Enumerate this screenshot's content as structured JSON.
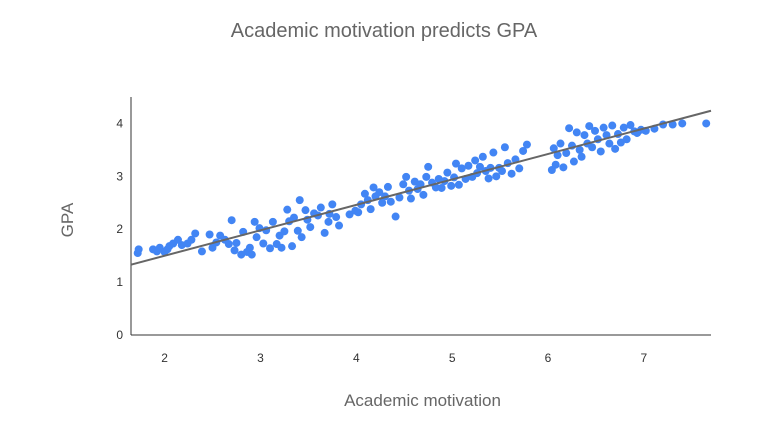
{
  "chart_data": {
    "type": "scatter",
    "title": "Academic motivation predicts GPA",
    "xlabel": "Academic motivation",
    "ylabel": "GPA",
    "xlim": [
      1.65,
      7.7
    ],
    "ylim": [
      0,
      4.5
    ],
    "x_ticks": [
      2,
      3,
      4,
      5,
      6,
      7
    ],
    "y_ticks": [
      0,
      1,
      2,
      3,
      4
    ],
    "grid": false,
    "legend": "none",
    "colors": {
      "points": "#4285f4",
      "trendline": "#666666",
      "axis": "#333333",
      "text": "#666666"
    },
    "trendline": {
      "x": [
        1.65,
        7.7
      ],
      "y": [
        1.33,
        4.24
      ]
    },
    "points": [
      [
        1.72,
        1.55
      ],
      [
        1.73,
        1.62
      ],
      [
        1.88,
        1.62
      ],
      [
        1.92,
        1.58
      ],
      [
        1.95,
        1.65
      ],
      [
        2.0,
        1.57
      ],
      [
        2.03,
        1.62
      ],
      [
        2.05,
        1.68
      ],
      [
        2.09,
        1.73
      ],
      [
        2.14,
        1.8
      ],
      [
        2.18,
        1.7
      ],
      [
        2.24,
        1.73
      ],
      [
        2.28,
        1.8
      ],
      [
        2.32,
        1.92
      ],
      [
        2.39,
        1.58
      ],
      [
        2.47,
        1.9
      ],
      [
        2.5,
        1.65
      ],
      [
        2.54,
        1.75
      ],
      [
        2.58,
        1.88
      ],
      [
        2.63,
        1.8
      ],
      [
        2.67,
        1.72
      ],
      [
        2.7,
        2.17
      ],
      [
        2.73,
        1.6
      ],
      [
        2.75,
        1.74
      ],
      [
        2.8,
        1.52
      ],
      [
        2.82,
        1.95
      ],
      [
        2.86,
        1.57
      ],
      [
        2.89,
        1.65
      ],
      [
        2.91,
        1.52
      ],
      [
        2.94,
        2.14
      ],
      [
        2.96,
        1.85
      ],
      [
        2.99,
        2.02
      ],
      [
        3.03,
        1.73
      ],
      [
        3.06,
        1.98
      ],
      [
        3.1,
        1.64
      ],
      [
        3.13,
        2.14
      ],
      [
        3.17,
        1.72
      ],
      [
        3.2,
        1.88
      ],
      [
        3.22,
        1.65
      ],
      [
        3.25,
        1.96
      ],
      [
        3.28,
        2.37
      ],
      [
        3.3,
        2.15
      ],
      [
        3.33,
        1.68
      ],
      [
        3.35,
        2.22
      ],
      [
        3.39,
        1.97
      ],
      [
        3.41,
        2.55
      ],
      [
        3.43,
        1.85
      ],
      [
        3.47,
        2.36
      ],
      [
        3.49,
        2.18
      ],
      [
        3.52,
        2.04
      ],
      [
        3.56,
        2.3
      ],
      [
        3.6,
        2.26
      ],
      [
        3.63,
        2.41
      ],
      [
        3.67,
        1.93
      ],
      [
        3.71,
        2.14
      ],
      [
        3.72,
        2.29
      ],
      [
        3.75,
        2.47
      ],
      [
        3.79,
        2.23
      ],
      [
        3.82,
        2.07
      ],
      [
        3.93,
        2.28
      ],
      [
        3.99,
        2.35
      ],
      [
        4.02,
        2.32
      ],
      [
        4.05,
        2.47
      ],
      [
        4.09,
        2.67
      ],
      [
        4.12,
        2.55
      ],
      [
        4.15,
        2.38
      ],
      [
        4.18,
        2.79
      ],
      [
        4.2,
        2.62
      ],
      [
        4.24,
        2.7
      ],
      [
        4.27,
        2.5
      ],
      [
        4.3,
        2.62
      ],
      [
        4.33,
        2.8
      ],
      [
        4.36,
        2.52
      ],
      [
        4.41,
        2.24
      ],
      [
        4.45,
        2.6
      ],
      [
        4.49,
        2.85
      ],
      [
        4.52,
        2.99
      ],
      [
        4.55,
        2.73
      ],
      [
        4.57,
        2.58
      ],
      [
        4.61,
        2.9
      ],
      [
        4.64,
        2.76
      ],
      [
        4.67,
        2.85
      ],
      [
        4.7,
        2.65
      ],
      [
        4.73,
        2.99
      ],
      [
        4.75,
        3.18
      ],
      [
        4.79,
        2.88
      ],
      [
        4.83,
        2.79
      ],
      [
        4.86,
        2.95
      ],
      [
        4.89,
        2.78
      ],
      [
        4.92,
        2.91
      ],
      [
        4.95,
        3.07
      ],
      [
        4.99,
        2.82
      ],
      [
        5.02,
        2.98
      ],
      [
        5.04,
        3.24
      ],
      [
        5.07,
        2.84
      ],
      [
        5.1,
        3.15
      ],
      [
        5.14,
        2.95
      ],
      [
        5.17,
        3.2
      ],
      [
        5.21,
        2.99
      ],
      [
        5.24,
        3.3
      ],
      [
        5.26,
        3.06
      ],
      [
        5.29,
        3.18
      ],
      [
        5.32,
        3.37
      ],
      [
        5.35,
        3.1
      ],
      [
        5.38,
        2.96
      ],
      [
        5.4,
        3.16
      ],
      [
        5.43,
        3.45
      ],
      [
        5.46,
        3.0
      ],
      [
        5.49,
        3.16
      ],
      [
        5.52,
        3.1
      ],
      [
        5.55,
        3.55
      ],
      [
        5.58,
        3.25
      ],
      [
        5.62,
        3.05
      ],
      [
        5.66,
        3.32
      ],
      [
        5.7,
        3.15
      ],
      [
        5.74,
        3.48
      ],
      [
        5.78,
        3.6
      ],
      [
        6.04,
        3.12
      ],
      [
        6.06,
        3.53
      ],
      [
        6.08,
        3.22
      ],
      [
        6.1,
        3.4
      ],
      [
        6.13,
        3.62
      ],
      [
        6.16,
        3.17
      ],
      [
        6.19,
        3.44
      ],
      [
        6.22,
        3.91
      ],
      [
        6.25,
        3.58
      ],
      [
        6.27,
        3.28
      ],
      [
        6.3,
        3.83
      ],
      [
        6.33,
        3.5
      ],
      [
        6.35,
        3.37
      ],
      [
        6.38,
        3.78
      ],
      [
        6.41,
        3.62
      ],
      [
        6.43,
        3.95
      ],
      [
        6.46,
        3.55
      ],
      [
        6.49,
        3.86
      ],
      [
        6.52,
        3.7
      ],
      [
        6.55,
        3.47
      ],
      [
        6.58,
        3.92
      ],
      [
        6.61,
        3.78
      ],
      [
        6.64,
        3.62
      ],
      [
        6.67,
        3.96
      ],
      [
        6.7,
        3.52
      ],
      [
        6.73,
        3.8
      ],
      [
        6.76,
        3.64
      ],
      [
        6.79,
        3.92
      ],
      [
        6.82,
        3.7
      ],
      [
        6.86,
        3.97
      ],
      [
        6.9,
        3.85
      ],
      [
        6.93,
        3.82
      ],
      [
        6.97,
        3.88
      ],
      [
        7.02,
        3.86
      ],
      [
        7.11,
        3.9
      ],
      [
        7.2,
        3.98
      ],
      [
        7.3,
        3.98
      ],
      [
        7.4,
        4.0
      ],
      [
        7.65,
        4.0
      ]
    ]
  }
}
